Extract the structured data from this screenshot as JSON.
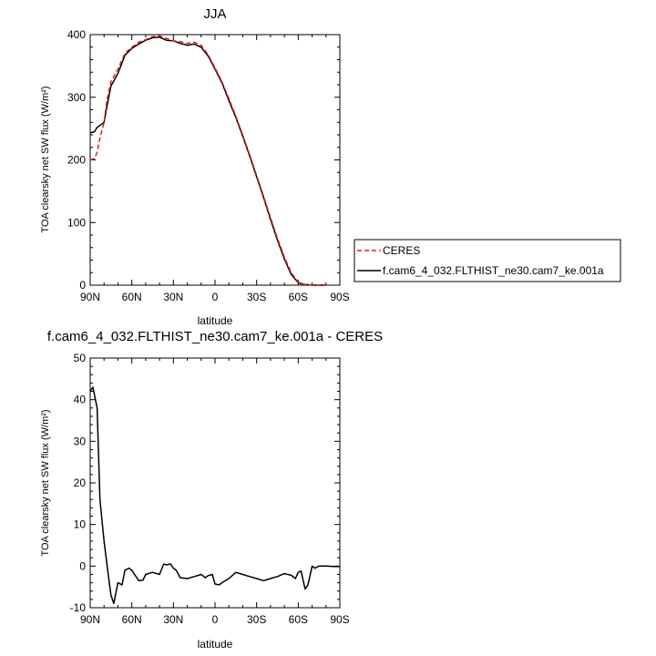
{
  "chart_data": [
    {
      "type": "line",
      "title": "JJA",
      "xlabel": "latitude",
      "ylabel": "TOA clearsky net SW flux (W/m²)",
      "xlim": [
        90,
        -90
      ],
      "ylim": [
        0,
        400
      ],
      "xticks": [
        {
          "value": 90,
          "label": "90N"
        },
        {
          "value": 60,
          "label": "60N"
        },
        {
          "value": 30,
          "label": "30N"
        },
        {
          "value": 0,
          "label": "0"
        },
        {
          "value": -30,
          "label": "30S"
        },
        {
          "value": -60,
          "label": "60S"
        },
        {
          "value": -90,
          "label": "90S"
        }
      ],
      "yticks": [
        0,
        100,
        200,
        300,
        400
      ],
      "legend": "right",
      "series": [
        {
          "name": "CERES",
          "color": "#e41a1c",
          "dash": "dashed",
          "x": [
            90,
            87,
            85,
            83,
            80,
            78,
            75,
            70,
            65,
            60,
            55,
            50,
            45,
            40,
            35,
            30,
            25,
            20,
            15,
            10,
            5,
            0,
            -5,
            -10,
            -15,
            -20,
            -25,
            -30,
            -35,
            -40,
            -45,
            -50,
            -55,
            -60,
            -63,
            -65,
            -70,
            -75,
            -80
          ],
          "y": [
            200,
            202,
            212,
            235,
            260,
            295,
            325,
            345,
            370,
            380,
            388,
            392,
            397,
            398,
            394,
            390,
            389,
            386,
            388,
            383,
            368,
            347,
            325,
            298,
            270,
            240,
            208,
            175,
            142,
            108,
            75,
            45,
            20,
            5,
            2,
            1,
            0,
            0,
            0
          ]
        },
        {
          "name": "f.cam6_4_032.FLTHIST_ne30.cam7_ke.001a",
          "color": "#000000",
          "dash": "solid",
          "x": [
            90,
            87,
            85,
            83,
            80,
            78,
            75,
            70,
            65,
            60,
            55,
            50,
            45,
            40,
            35,
            30,
            25,
            20,
            15,
            10,
            5,
            0,
            -5,
            -10,
            -15,
            -20,
            -25,
            -30,
            -35,
            -40,
            -45,
            -50,
            -55,
            -60,
            -63,
            -65,
            -70,
            -75,
            -80
          ],
          "y": [
            243,
            245,
            252,
            255,
            260,
            285,
            318,
            338,
            367,
            378,
            385,
            391,
            395,
            396,
            391,
            390,
            386,
            383,
            385,
            380,
            366,
            345,
            323,
            295,
            268,
            238,
            206,
            173,
            140,
            105,
            72,
            42,
            17,
            4,
            2,
            1,
            0,
            0,
            0
          ]
        }
      ]
    },
    {
      "type": "line",
      "title": "f.cam6_4_032.FLTHIST_ne30.cam7_ke.001a - CERES",
      "xlabel": "latitude",
      "ylabel": "TOA clearsky net SW flux (W/m²)",
      "xlim": [
        90,
        -90
      ],
      "ylim": [
        -10,
        50
      ],
      "xticks": [
        {
          "value": 90,
          "label": "90N"
        },
        {
          "value": 60,
          "label": "60N"
        },
        {
          "value": 30,
          "label": "30N"
        },
        {
          "value": 0,
          "label": "0"
        },
        {
          "value": -30,
          "label": "30S"
        },
        {
          "value": -60,
          "label": "60S"
        },
        {
          "value": -90,
          "label": "90S"
        }
      ],
      "yticks": [
        -10,
        0,
        10,
        20,
        30,
        40,
        50
      ],
      "series": [
        {
          "color": "#000000",
          "dash": "solid",
          "x": [
            90,
            88,
            85,
            83,
            80,
            77,
            75,
            73,
            70,
            67,
            65,
            62,
            60,
            58,
            55,
            52,
            50,
            45,
            40,
            37,
            35,
            32,
            30,
            28,
            25,
            20,
            15,
            10,
            7,
            5,
            2,
            0,
            -3,
            -5,
            -10,
            -15,
            -20,
            -25,
            -30,
            -35,
            -40,
            -45,
            -50,
            -55,
            -58,
            -60,
            -62,
            -65,
            -67,
            -70,
            -72,
            -75,
            -80,
            -85,
            -90
          ],
          "y": [
            42,
            43,
            38,
            16,
            6,
            -2,
            -7,
            -9,
            -4,
            -4.5,
            -1,
            -0.5,
            -1,
            -2,
            -3.5,
            -3.4,
            -2,
            -1.5,
            -2,
            0.5,
            0.3,
            0.5,
            -0.5,
            -1,
            -2.8,
            -3,
            -2.5,
            -2,
            -2.8,
            -2.3,
            -2,
            -4.3,
            -4.5,
            -4,
            -3,
            -1.5,
            -2,
            -2.5,
            -3,
            -3.5,
            -3,
            -2.5,
            -1.8,
            -2.2,
            -3,
            -1.5,
            -1.2,
            -5.5,
            -4.5,
            0,
            -0.5,
            0,
            0,
            -0.1,
            -0.1
          ]
        }
      ]
    }
  ]
}
